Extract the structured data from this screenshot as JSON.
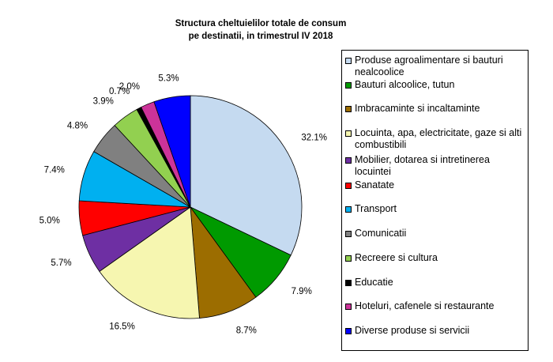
{
  "chart_data": {
    "type": "pie",
    "title_line1": "Structura cheltuielilor totale de consum",
    "title_line2": "pe destinatii, in trimestrul IV 2018",
    "slices": [
      {
        "label": "Produse agroalimentare si bauturi nealcoolice",
        "value": 32.1,
        "value_label": "32.1%",
        "color": "#c5daf0"
      },
      {
        "label": "Bauturi alcoolice, tutun",
        "value": 7.9,
        "value_label": "7.9%",
        "color": "#009a00"
      },
      {
        "label": "Imbracaminte si incaltaminte",
        "value": 8.7,
        "value_label": "8.7%",
        "color": "#9c6d00"
      },
      {
        "label": "Locuinta, apa, electricitate, gaze si alti combustibili",
        "value": 16.5,
        "value_label": "16.5%",
        "color": "#f6f6b0"
      },
      {
        "label": "Mobilier, dotarea si intretinerea locuintei",
        "value": 5.7,
        "value_label": "5.7%",
        "color": "#6e2fa3"
      },
      {
        "label": "Sanatate",
        "value": 5.0,
        "value_label": "5.0%",
        "color": "#ff0000"
      },
      {
        "label": "Transport",
        "value": 7.4,
        "value_label": "7.4%",
        "color": "#00b0f0"
      },
      {
        "label": "Comunicatii",
        "value": 4.8,
        "value_label": "4.8%",
        "color": "#808080"
      },
      {
        "label": "Recreere si cultura",
        "value": 3.9,
        "value_label": "3.9%",
        "color": "#92d050"
      },
      {
        "label": "Educatie",
        "value": 0.7,
        "value_label": "0.7%",
        "color": "#000000"
      },
      {
        "label": "Hoteluri, cafenele si restaurante",
        "value": 2.0,
        "value_label": "2.0%",
        "color": "#cc3399"
      },
      {
        "label": "Diverse produse si servicii",
        "value": 5.3,
        "value_label": "5.3%",
        "color": "#0000ff"
      }
    ],
    "legend_position": "right",
    "start_angle": "12 o'clock",
    "direction": "clockwise"
  }
}
